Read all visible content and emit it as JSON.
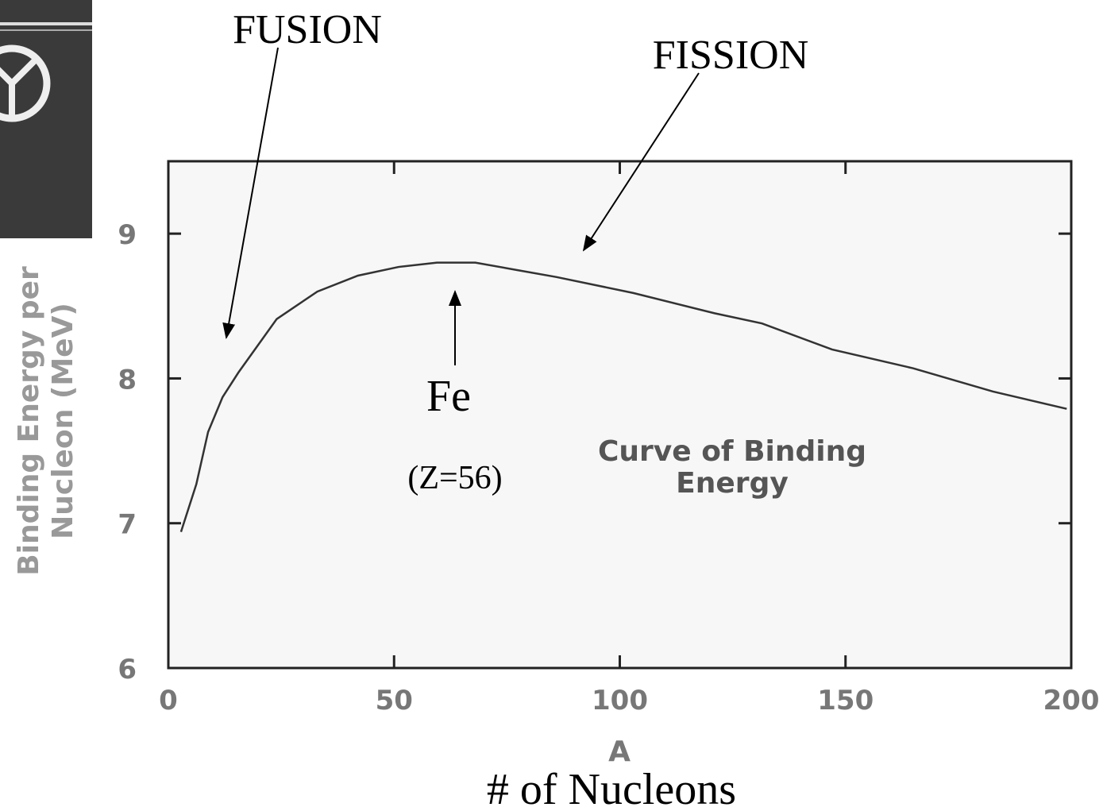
{
  "chart_data": {
    "type": "line",
    "annotations": {
      "fusion": "FUSION",
      "fission": "FISSION",
      "fe": "Fe",
      "z": "(Z=56)",
      "curve_name": [
        "Curve of Binding",
        "Energy"
      ]
    },
    "y_label": [
      "Binding Energy per",
      "Nucleon (MeV)"
    ],
    "x_label": "A",
    "x_caption": "# of Nucleons",
    "x": [
      2.8,
      6.2,
      8.8,
      12,
      15.5,
      24,
      33,
      42,
      51,
      59.5,
      68,
      77,
      86,
      103,
      121,
      131.5,
      147,
      165,
      182.6,
      199
    ],
    "values": [
      6.94,
      7.27,
      7.63,
      7.87,
      8.04,
      8.41,
      8.6,
      8.71,
      8.77,
      8.8,
      8.8,
      8.75,
      8.7,
      8.59,
      8.45,
      8.38,
      8.2,
      8.07,
      7.91,
      7.79
    ],
    "color": "#333333",
    "xlim": [
      0,
      200
    ],
    "xticks": [
      0,
      50,
      100,
      150,
      200
    ],
    "ylim": [
      6,
      9.5
    ],
    "yticks": [
      6,
      7,
      8,
      9
    ],
    "grid": false
  }
}
